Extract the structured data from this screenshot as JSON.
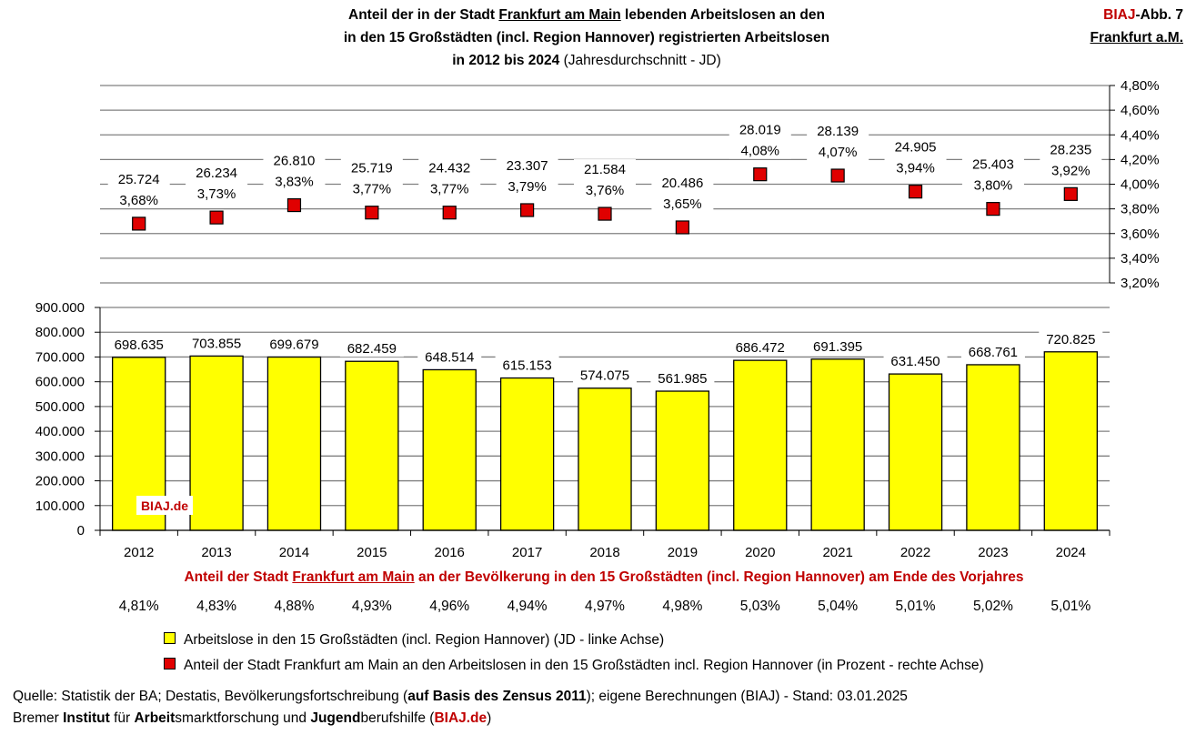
{
  "header": {
    "title_line1_a": "Anteil der in der Stadt ",
    "title_line1_u": "Frankfurt am Main",
    "title_line1_b": " lebenden Arbeitslosen an den",
    "title_line2": "in den 15 Großstädten (incl. Region Hannover) registrierten Arbeitslosen",
    "title_line3_bold": "in 2012 bis 2024",
    "title_line3_normal": " (Jahresdurchschnitt - JD)",
    "abb_biaj": "BIAJ",
    "abb_rest": "-Abb. 7",
    "abb_city": "Frankfurt a.M."
  },
  "subtitle": {
    "a": "Anteil der Stadt ",
    "u": "Frankfurt am Main",
    "b": " an der Bevölkerung in den 15 Großstädten (incl. Region Hannover) am Ende des Vorjahres"
  },
  "watermark": "BIAJ.de",
  "legend": {
    "bars": "Arbeitslose in den 15 Großstädten (incl. Region Hannover) (JD - linke Achse)",
    "markers": "Anteil der Stadt Frankfurt am Main an den Arbeitslosen in den 15 Großstädten incl. Region Hannover (in Prozent - rechte Achse)"
  },
  "source": {
    "l1_a": "Quelle: Statistik der BA; Destatis, Bevölkerungsfortschreibung (",
    "l1_b": "auf Basis des Zensus 2011",
    "l1_c": "); eigene Berechnungen (BIAJ) - Stand: 03.01.2025",
    "l2_a": "Bremer ",
    "l2_b": "Institut",
    "l2_c": " für ",
    "l2_d": "Arbeit",
    "l2_e": "smarktforschung und ",
    "l2_f": "Jugend",
    "l2_g": "berufshilfe (",
    "l2_h": "BIAJ.de",
    "l2_i": ")"
  },
  "colors": {
    "bar": "#ffff00",
    "marker": "#e00000",
    "accent": "#c00000"
  },
  "chart_data": {
    "type": "bar+scatter",
    "categories": [
      "2012",
      "2013",
      "2014",
      "2015",
      "2016",
      "2017",
      "2018",
      "2019",
      "2020",
      "2021",
      "2022",
      "2023",
      "2024"
    ],
    "bars": {
      "values": [
        698635,
        703855,
        699679,
        682459,
        648514,
        615153,
        574075,
        561985,
        686472,
        691395,
        631450,
        668761,
        720825
      ],
      "labels": [
        "698.635",
        "703.855",
        "699.679",
        "682.459",
        "648.514",
        "615.153",
        "574.075",
        "561.985",
        "686.472",
        "691.395",
        "631.450",
        "668.761",
        "720.825"
      ],
      "axis": "left"
    },
    "markers": {
      "values": [
        3.68,
        3.73,
        3.83,
        3.77,
        3.77,
        3.79,
        3.76,
        3.65,
        4.08,
        4.07,
        3.94,
        3.8,
        3.92
      ],
      "pct_labels": [
        "3,68%",
        "3,73%",
        "3,83%",
        "3,77%",
        "3,77%",
        "3,79%",
        "3,76%",
        "3,65%",
        "4,08%",
        "4,07%",
        "3,94%",
        "3,80%",
        "3,92%"
      ],
      "count_labels": [
        "25.724",
        "26.234",
        "26.810",
        "25.719",
        "24.432",
        "23.307",
        "21.584",
        "20.486",
        "28.019",
        "28.139",
        "24.905",
        "25.403",
        "28.235"
      ],
      "axis": "right"
    },
    "population_share": [
      "4,81%",
      "4,83%",
      "4,88%",
      "4,93%",
      "4,96%",
      "4,94%",
      "4,97%",
      "4,98%",
      "5,03%",
      "5,04%",
      "5,01%",
      "5,02%",
      "5,01%"
    ],
    "left_axis": {
      "ylim": [
        0,
        900000
      ],
      "ticks": [
        0,
        100000,
        200000,
        300000,
        400000,
        500000,
        600000,
        700000,
        800000,
        900000
      ],
      "tick_labels": [
        "0",
        "100.000",
        "200.000",
        "300.000",
        "400.000",
        "500.000",
        "600.000",
        "700.000",
        "800.000",
        "900.000"
      ]
    },
    "right_axis": {
      "ylim": [
        3.2,
        4.8
      ],
      "ticks": [
        3.2,
        3.4,
        3.6,
        3.8,
        4.0,
        4.2,
        4.4,
        4.6,
        4.8
      ],
      "tick_labels": [
        "3,20%",
        "3,40%",
        "3,60%",
        "3,80%",
        "4,00%",
        "4,20%",
        "4,40%",
        "4,60%",
        "4,80%"
      ]
    }
  }
}
